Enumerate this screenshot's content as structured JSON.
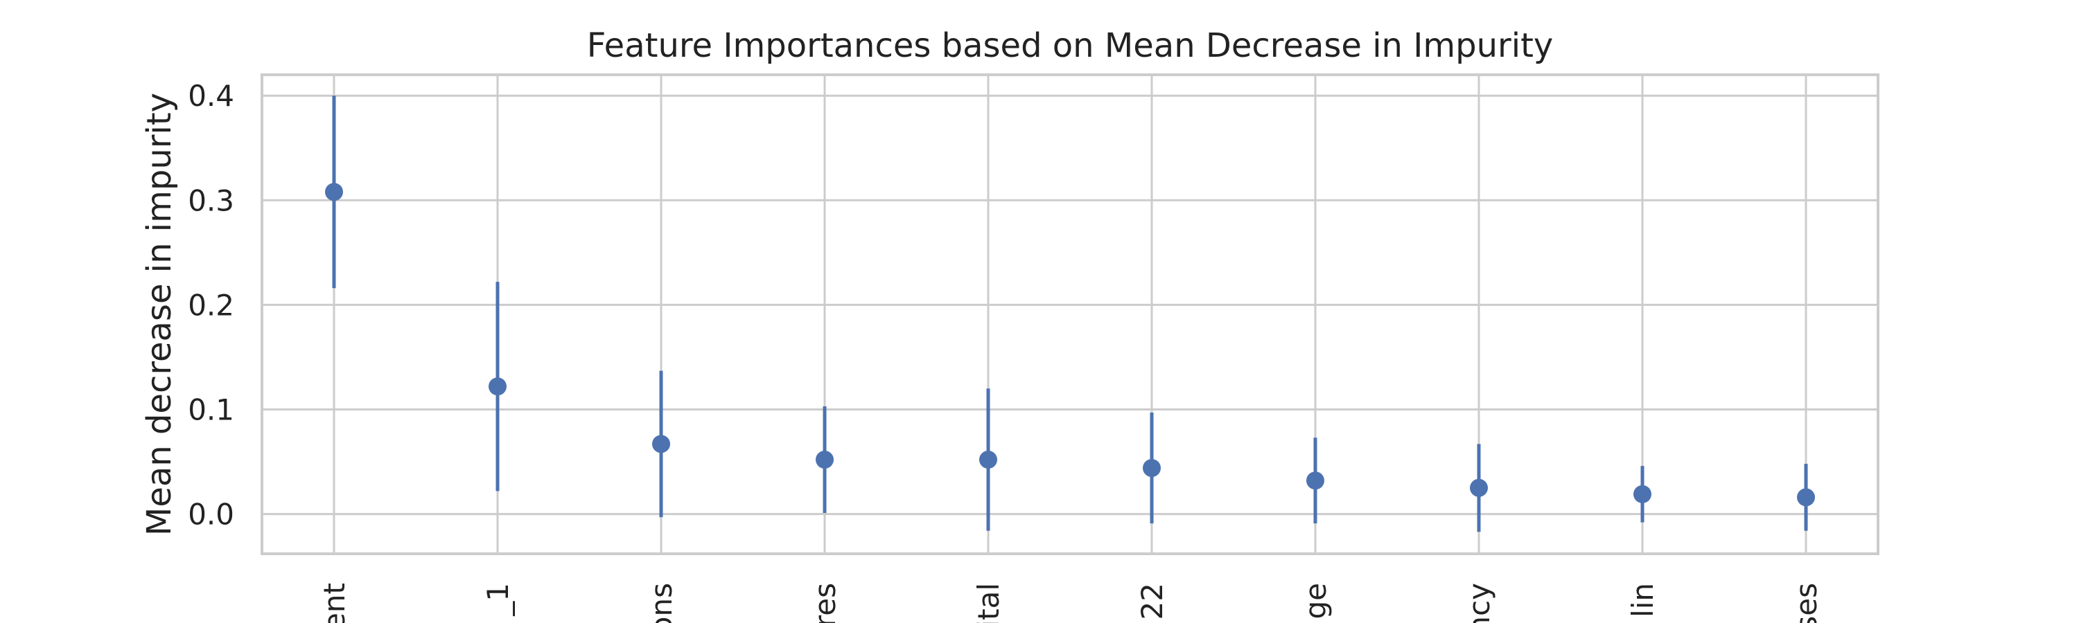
{
  "chart_data": {
    "type": "scatter",
    "title": "Feature Importances based on Mean Decrease in Impurity",
    "xlabel": "",
    "ylabel": "Mean decrease in impurity",
    "categories": [
      "ent",
      "_1",
      "ons",
      "res",
      "ital",
      "22",
      "ge",
      "ncy",
      "lin",
      "ses"
    ],
    "values": [
      0.308,
      0.122,
      0.067,
      0.052,
      0.052,
      0.044,
      0.032,
      0.025,
      0.019,
      0.016
    ],
    "error": [
      0.092,
      0.1,
      0.07,
      0.051,
      0.068,
      0.053,
      0.041,
      0.042,
      0.027,
      0.032
    ],
    "yticks": [
      0.0,
      0.1,
      0.2,
      0.3,
      0.4
    ],
    "ytick_labels": [
      "0.0",
      "0.1",
      "0.2",
      "0.3",
      "0.4"
    ],
    "ylim": [
      -0.038,
      0.42
    ],
    "grid": true,
    "colors": {
      "marker": "#4c72b0",
      "grid": "#cccccc",
      "spine": "#cccccc",
      "text": "#222222"
    }
  }
}
